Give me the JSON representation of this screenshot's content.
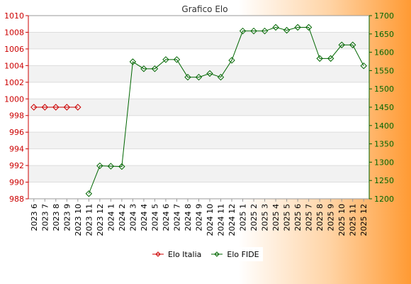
{
  "chart_data": {
    "type": "line",
    "title": "Grafico Elo",
    "categories": [
      "2023 6",
      "2023 7",
      "2023 8",
      "2023 9",
      "2023 10",
      "2023 11",
      "2023 12",
      "2024 1",
      "2024 2",
      "2024 3",
      "2024 4",
      "2024 5",
      "2024 6",
      "2024 7",
      "2024 8",
      "2024 9",
      "2024 10",
      "2024 11",
      "2024 12",
      "2025 1",
      "2025 2",
      "2025 3",
      "2025 4",
      "2025 5",
      "2025 6",
      "2025 7",
      "2025 8",
      "2025 9",
      "2025 10",
      "2025 11",
      "2025 12"
    ],
    "left_axis": {
      "min": 988,
      "max": 1010,
      "ticks": [
        988,
        990,
        992,
        994,
        996,
        998,
        1000,
        1002,
        1004,
        1006,
        1008,
        1010
      ],
      "color": "#cc0000"
    },
    "right_axis": {
      "min": 1200,
      "max": 1700,
      "ticks": [
        1200,
        1250,
        1300,
        1350,
        1400,
        1450,
        1500,
        1550,
        1600,
        1650,
        1700
      ],
      "color": "#006600"
    },
    "series": [
      {
        "name": "Elo Italia",
        "axis": "left",
        "color": "#cc0000",
        "values": [
          999,
          999,
          999,
          999,
          999,
          null,
          null,
          null,
          null,
          null,
          null,
          null,
          null,
          null,
          null,
          null,
          null,
          null,
          null,
          null,
          null,
          null,
          null,
          null,
          null,
          null,
          null,
          null,
          null,
          null,
          null
        ]
      },
      {
        "name": "Elo FIDE",
        "axis": "right",
        "color": "#006600",
        "values": [
          null,
          null,
          null,
          null,
          null,
          1214,
          1290,
          1289,
          1288,
          1574,
          1555,
          1555,
          1580,
          1580,
          1532,
          1532,
          1542,
          1532,
          1578,
          1658,
          1658,
          1658,
          1668,
          1660,
          1668,
          1668,
          1583,
          1583,
          1620,
          1620,
          1563
        ]
      }
    ],
    "grid": true,
    "legend": "bottom"
  }
}
